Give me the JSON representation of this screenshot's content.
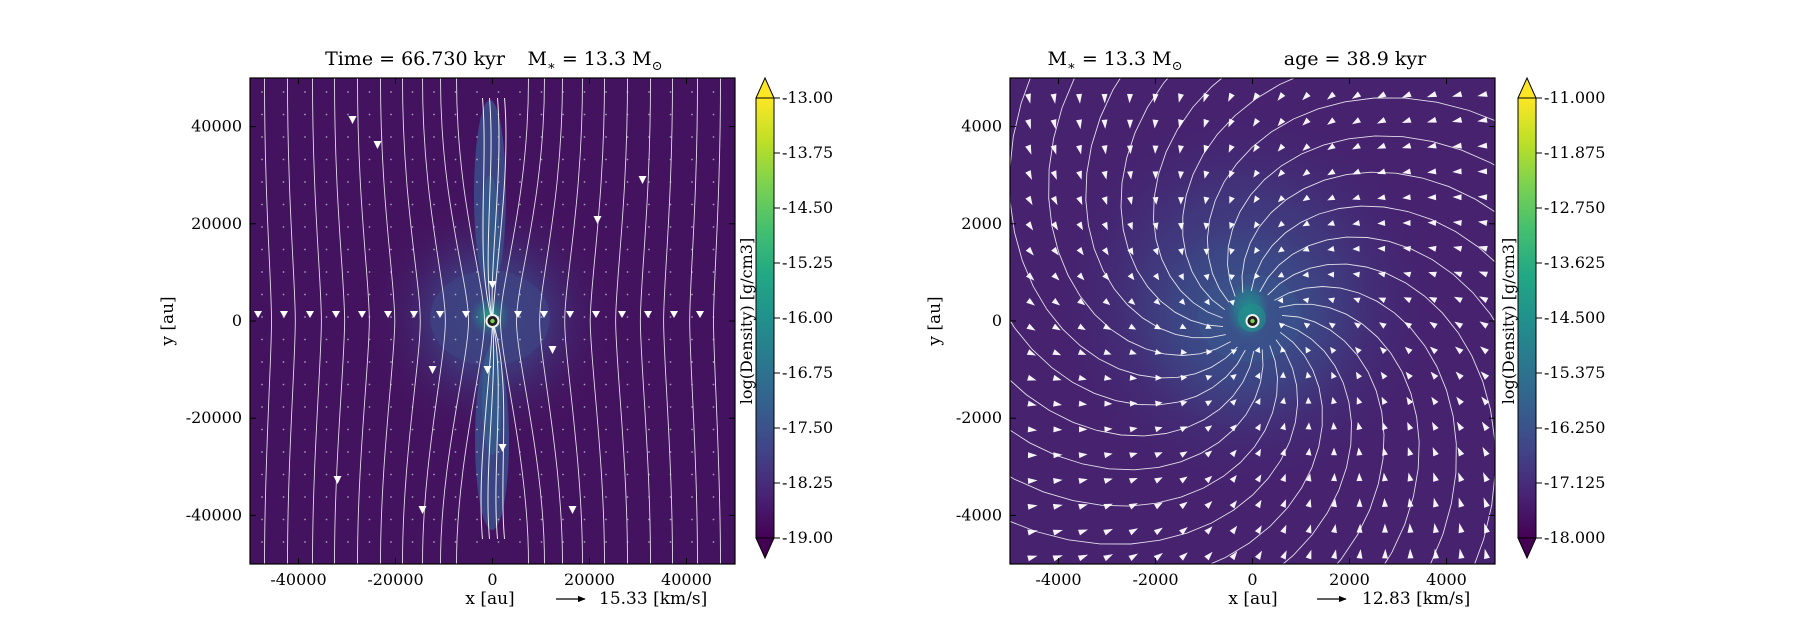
{
  "colors": {
    "viridis": [
      "#440154",
      "#482475",
      "#414487",
      "#355f8d",
      "#2a788e",
      "#21918c",
      "#22a884",
      "#44bf70",
      "#7ad151",
      "#bddf26",
      "#fde725"
    ],
    "streamline": "#ffffff",
    "star_fill": "#1f1f1f",
    "star_ring": "#f0f0f0"
  },
  "chart_data": [
    {
      "type": "heatmap",
      "title_left": "Time = 66.730 kyr",
      "title_right": "M$_*$ = 13.3 M$_\\odot$",
      "title_parts": {
        "time": "Time = 66.730 kyr",
        "mass_prefix": "M",
        "mass_sub": "∗",
        "mass_mid": " = 13.3 M",
        "mass_sun": "⊙"
      },
      "xlabel": "x [au]",
      "ylabel": "y [au]",
      "xlim": [
        -50000,
        50000
      ],
      "ylim": [
        -50000,
        50000
      ],
      "x_ticks": [
        "-40000",
        "-20000",
        "0",
        "20000",
        "40000"
      ],
      "x_tick_values": [
        -40000,
        -20000,
        0,
        20000,
        40000
      ],
      "y_ticks": [
        "40000",
        "20000",
        "0",
        "-20000",
        "-40000"
      ],
      "y_tick_values": [
        40000,
        20000,
        0,
        -20000,
        -40000
      ],
      "colorbar": {
        "label": "log(Density) [g/cm3]",
        "range": [
          -19.0,
          -13.0
        ],
        "ticks": [
          "-13.00",
          "-13.75",
          "-14.50",
          "-15.25",
          "-16.00",
          "-16.75",
          "-17.50",
          "-18.25",
          "-19.00"
        ],
        "tick_values": [
          -13.0,
          -13.75,
          -14.5,
          -15.25,
          -16.0,
          -16.75,
          -17.5,
          -18.25,
          -19.0
        ],
        "extend": "both"
      },
      "velocity_key": {
        "label": "15.33 [km/s]",
        "value": 15.33,
        "unit": "km/s"
      },
      "flow": "bipolar-infall",
      "star": {
        "x": 0,
        "y": 0
      }
    },
    {
      "type": "heatmap",
      "title_left": "M$_*$ = 13.3 M$_\\odot$",
      "title_right": "age = 38.9 kyr",
      "title_parts": {
        "mass_prefix": "M",
        "mass_sub": "∗",
        "mass_mid": " = 13.3 M",
        "mass_sun": "⊙",
        "age": "age = 38.9 kyr"
      },
      "xlabel": "x [au]",
      "ylabel": "y [au]",
      "xlim": [
        -5000,
        5000
      ],
      "ylim": [
        -5000,
        5000
      ],
      "x_ticks": [
        "-4000",
        "-2000",
        "0",
        "2000",
        "4000"
      ],
      "x_tick_values": [
        -4000,
        -2000,
        0,
        2000,
        4000
      ],
      "y_ticks": [
        "4000",
        "2000",
        "0",
        "-2000",
        "-4000"
      ],
      "y_tick_values": [
        4000,
        2000,
        0,
        -2000,
        -4000
      ],
      "colorbar": {
        "label": "log(Density) [g/cm3]",
        "range": [
          -18.0,
          -11.0
        ],
        "ticks": [
          "-11.000",
          "-11.875",
          "-12.750",
          "-13.625",
          "-14.500",
          "-15.375",
          "-16.250",
          "-17.125",
          "-18.000"
        ],
        "tick_values": [
          -11.0,
          -11.875,
          -12.75,
          -13.625,
          -14.5,
          -15.375,
          -16.25,
          -17.125,
          -18.0
        ],
        "extend": "both"
      },
      "velocity_key": {
        "label": "12.83 [km/s]",
        "value": 12.83,
        "unit": "km/s"
      },
      "flow": "spiral-infall",
      "star": {
        "x": 0,
        "y": 0
      }
    }
  ]
}
